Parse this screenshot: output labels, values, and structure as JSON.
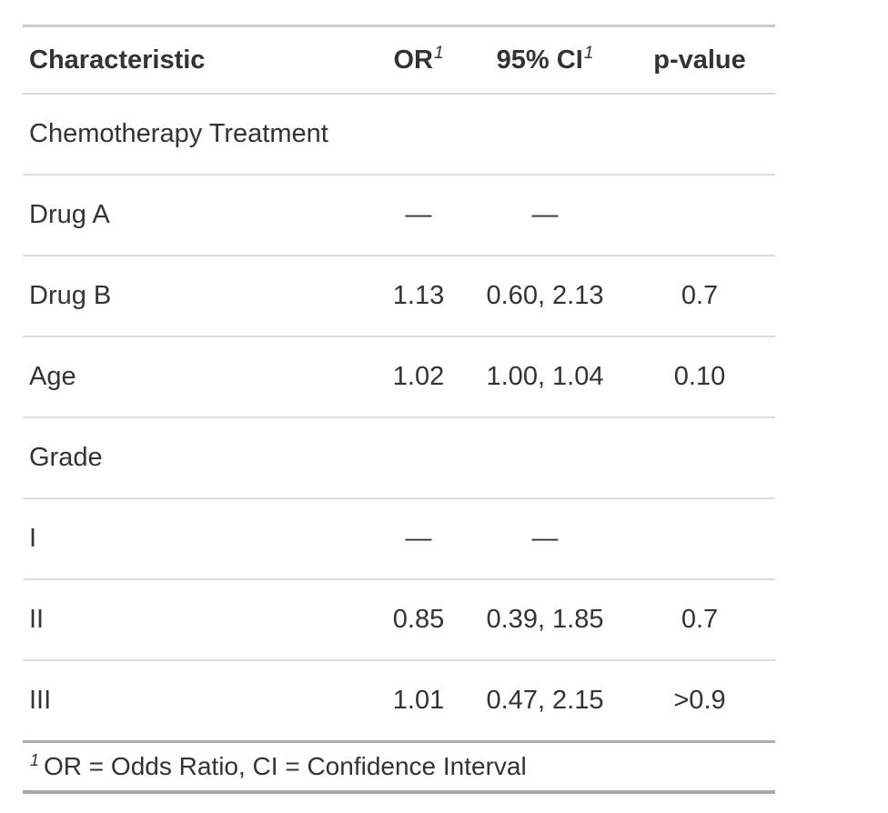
{
  "colors": {
    "text": "#333333",
    "table_top_border": "#cccccc",
    "inner_row_border": "#dcdcdc",
    "body_bottom_border": "#ababab",
    "table_bottom_border": "#a8a8a8",
    "background": "#ffffff"
  },
  "chart_data": {
    "type": "table",
    "title": "",
    "header": {
      "characteristic": "Characteristic",
      "or": "OR",
      "or_sup": "1",
      "ci": "95% CI",
      "ci_sup": "1",
      "p": "p-value"
    },
    "rows": [
      {
        "label": "Chemotherapy Treatment",
        "indent": false,
        "or": "",
        "ci": "",
        "p": ""
      },
      {
        "label": "Drug A",
        "indent": true,
        "or": "—",
        "ci": "—",
        "p": ""
      },
      {
        "label": "Drug B",
        "indent": true,
        "or": "1.13",
        "ci": "0.60, 2.13",
        "p": "0.7"
      },
      {
        "label": "Age",
        "indent": false,
        "or": "1.02",
        "ci": "1.00, 1.04",
        "p": "0.10"
      },
      {
        "label": "Grade",
        "indent": false,
        "or": "",
        "ci": "",
        "p": ""
      },
      {
        "label": "I",
        "indent": true,
        "or": "—",
        "ci": "—",
        "p": ""
      },
      {
        "label": "II",
        "indent": true,
        "or": "0.85",
        "ci": "0.39, 1.85",
        "p": "0.7"
      },
      {
        "label": "III",
        "indent": true,
        "or": "1.01",
        "ci": "0.47, 2.15",
        "p": ">0.9"
      }
    ],
    "footnote_marker": "1",
    "footnote_text": "OR = Odds Ratio, CI = Confidence Interval"
  }
}
